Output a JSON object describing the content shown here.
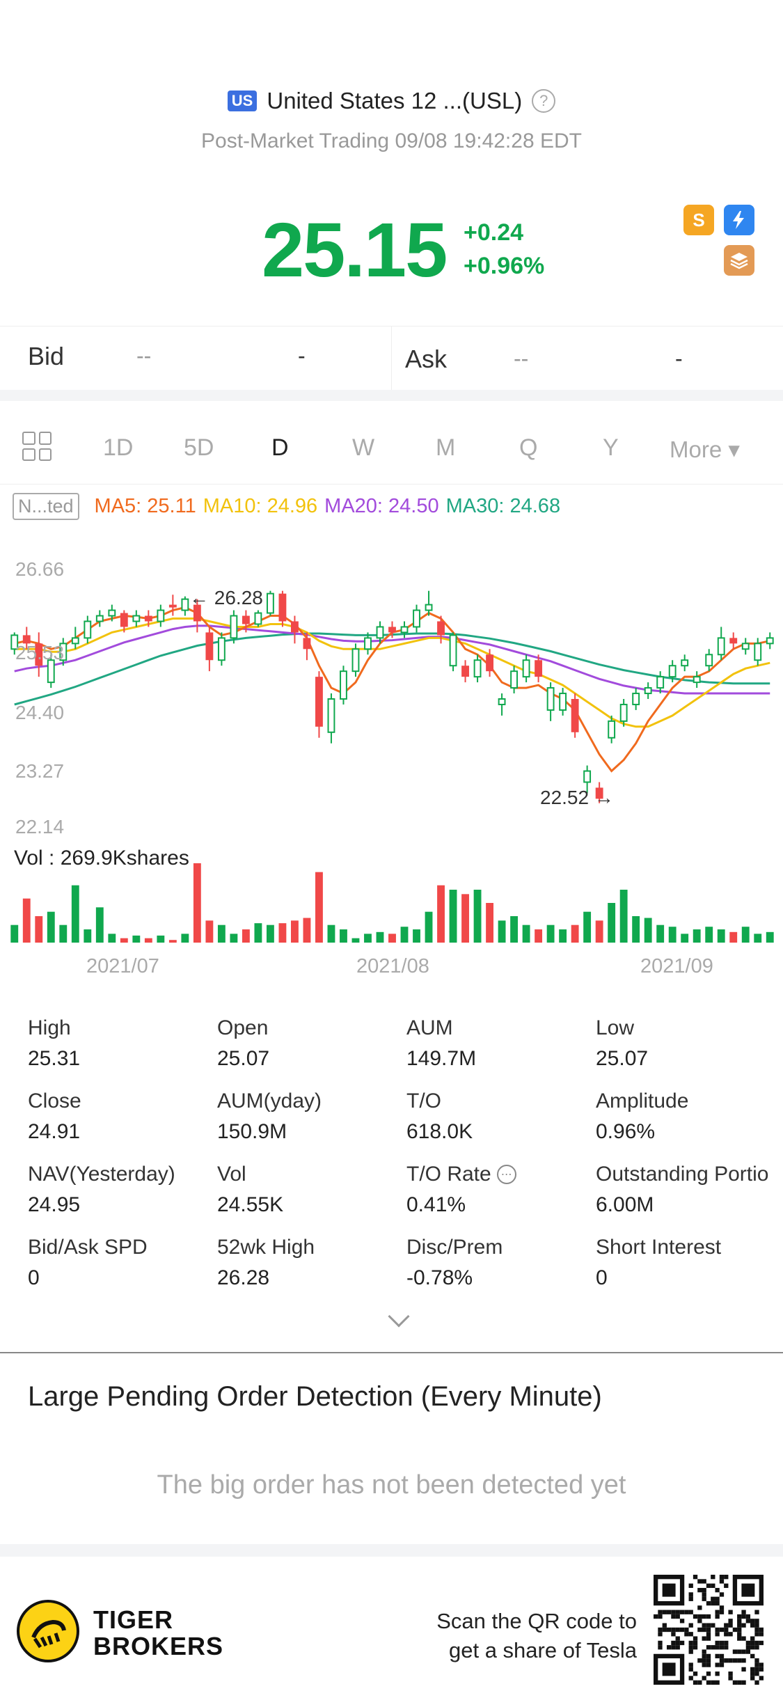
{
  "header": {
    "region_badge": "US",
    "title": "United States 12 ...(USL)",
    "help": "?",
    "subtitle": "Post-Market Trading 09/08 19:42:28 EDT",
    "price": "25.15",
    "change_abs": "+0.24",
    "change_pct": "+0.96%",
    "badge_dollar": "S",
    "badge_lightning": "1",
    "badge_layers": "A"
  },
  "bidask": {
    "bid_label": "Bid",
    "bid_price": "--",
    "bid_size": "-",
    "ask_label": "Ask",
    "ask_price": "--",
    "ask_size": "-"
  },
  "tabs": {
    "items": [
      "1D",
      "5D",
      "D",
      "W",
      "M",
      "Q",
      "Y"
    ],
    "more": "More ▾",
    "active": "D"
  },
  "indicators": {
    "adjust": "N...ted",
    "ma5": "MA5: 25.11",
    "ma10": "MA10: 24.96",
    "ma20": "MA20: 24.50",
    "ma30": "MA30: 24.68",
    "colors": {
      "ma5": "#f06a1e",
      "ma10": "#f2c20d",
      "ma20": "#a24bdc",
      "ma30": "#21a783",
      "up": "#f04848",
      "down": "#10a84e"
    }
  },
  "chart": {
    "y_labels": [
      "26.66",
      "25.53",
      "24.40",
      "23.27",
      "22.14"
    ],
    "high_marker": "26.28",
    "low_marker": "22.52",
    "vol_label": "Vol  : 269.9Kshares",
    "x_labels": [
      "2021/07",
      "2021/08",
      "2021/09"
    ]
  },
  "chart_data": {
    "type": "candlestick",
    "ylim": [
      22.14,
      26.66
    ],
    "candles": [
      {
        "o": 25.3,
        "c": 25.55,
        "h": 25.6,
        "l": 25.2,
        "v": 20,
        "up": false
      },
      {
        "o": 25.55,
        "c": 25.4,
        "h": 25.7,
        "l": 25.3,
        "v": 50,
        "up": true
      },
      {
        "o": 25.4,
        "c": 25.0,
        "h": 25.6,
        "l": 24.8,
        "v": 30,
        "up": true
      },
      {
        "o": 24.7,
        "c": 25.1,
        "h": 25.2,
        "l": 24.6,
        "v": 35,
        "up": false
      },
      {
        "o": 25.1,
        "c": 25.4,
        "h": 25.5,
        "l": 25.0,
        "v": 20,
        "up": false
      },
      {
        "o": 25.4,
        "c": 25.5,
        "h": 25.7,
        "l": 25.3,
        "v": 65,
        "up": false
      },
      {
        "o": 25.5,
        "c": 25.8,
        "h": 25.9,
        "l": 25.4,
        "v": 15,
        "up": false
      },
      {
        "o": 25.8,
        "c": 25.9,
        "h": 26.0,
        "l": 25.7,
        "v": 40,
        "up": false
      },
      {
        "o": 25.9,
        "c": 26.0,
        "h": 26.1,
        "l": 25.8,
        "v": 10,
        "up": false
      },
      {
        "o": 25.95,
        "c": 25.7,
        "h": 26.0,
        "l": 25.6,
        "v": 5,
        "up": true
      },
      {
        "o": 25.8,
        "c": 25.9,
        "h": 26.0,
        "l": 25.7,
        "v": 8,
        "up": false
      },
      {
        "o": 25.9,
        "c": 25.8,
        "h": 26.0,
        "l": 25.7,
        "v": 5,
        "up": true
      },
      {
        "o": 25.8,
        "c": 26.0,
        "h": 26.1,
        "l": 25.7,
        "v": 8,
        "up": false
      },
      {
        "o": 26.1,
        "c": 26.05,
        "h": 26.28,
        "l": 25.9,
        "v": 3,
        "up": true
      },
      {
        "o": 26.0,
        "c": 26.2,
        "h": 26.25,
        "l": 25.9,
        "v": 10,
        "up": false
      },
      {
        "o": 26.1,
        "c": 25.8,
        "h": 26.2,
        "l": 25.6,
        "v": 90,
        "up": true
      },
      {
        "o": 25.6,
        "c": 25.1,
        "h": 25.7,
        "l": 24.9,
        "v": 25,
        "up": true
      },
      {
        "o": 25.1,
        "c": 25.5,
        "h": 25.6,
        "l": 25.0,
        "v": 20,
        "up": false
      },
      {
        "o": 25.5,
        "c": 25.9,
        "h": 26.0,
        "l": 25.4,
        "v": 10,
        "up": false
      },
      {
        "o": 25.9,
        "c": 25.75,
        "h": 26.0,
        "l": 25.6,
        "v": 15,
        "up": true
      },
      {
        "o": 25.75,
        "c": 25.95,
        "h": 26.0,
        "l": 25.7,
        "v": 22,
        "up": false
      },
      {
        "o": 25.95,
        "c": 26.3,
        "h": 26.35,
        "l": 25.9,
        "v": 20,
        "up": false
      },
      {
        "o": 26.3,
        "c": 25.8,
        "h": 26.35,
        "l": 25.7,
        "v": 22,
        "up": true
      },
      {
        "o": 25.8,
        "c": 25.6,
        "h": 25.9,
        "l": 25.4,
        "v": 25,
        "up": true
      },
      {
        "o": 25.5,
        "c": 25.3,
        "h": 25.6,
        "l": 25.1,
        "v": 28,
        "up": true
      },
      {
        "o": 24.8,
        "c": 23.9,
        "h": 24.9,
        "l": 23.7,
        "v": 80,
        "up": true
      },
      {
        "o": 23.8,
        "c": 24.4,
        "h": 24.5,
        "l": 23.6,
        "v": 20,
        "up": false
      },
      {
        "o": 24.4,
        "c": 24.9,
        "h": 25.0,
        "l": 24.3,
        "v": 15,
        "up": false
      },
      {
        "o": 24.9,
        "c": 25.3,
        "h": 25.4,
        "l": 24.8,
        "v": 5,
        "up": false
      },
      {
        "o": 25.3,
        "c": 25.5,
        "h": 25.6,
        "l": 25.2,
        "v": 10,
        "up": false
      },
      {
        "o": 25.5,
        "c": 25.7,
        "h": 25.8,
        "l": 25.4,
        "v": 12,
        "up": false
      },
      {
        "o": 25.7,
        "c": 25.6,
        "h": 25.8,
        "l": 25.5,
        "v": 10,
        "up": true
      },
      {
        "o": 25.6,
        "c": 25.7,
        "h": 25.8,
        "l": 25.5,
        "v": 18,
        "up": false
      },
      {
        "o": 25.7,
        "c": 26.0,
        "h": 26.1,
        "l": 25.6,
        "v": 15,
        "up": false
      },
      {
        "o": 26.0,
        "c": 26.1,
        "h": 26.35,
        "l": 25.9,
        "v": 35,
        "up": false
      },
      {
        "o": 25.8,
        "c": 25.55,
        "h": 25.9,
        "l": 25.4,
        "v": 65,
        "up": true
      },
      {
        "o": 25.55,
        "c": 25.0,
        "h": 25.6,
        "l": 24.9,
        "v": 60,
        "up": false
      },
      {
        "o": 25.0,
        "c": 24.8,
        "h": 25.1,
        "l": 24.7,
        "v": 55,
        "up": true
      },
      {
        "o": 24.8,
        "c": 25.1,
        "h": 25.2,
        "l": 24.7,
        "v": 60,
        "up": false
      },
      {
        "o": 25.2,
        "c": 24.9,
        "h": 25.3,
        "l": 24.8,
        "v": 45,
        "up": true
      },
      {
        "o": 24.4,
        "c": 24.3,
        "h": 24.5,
        "l": 24.1,
        "v": 25,
        "up": false
      },
      {
        "o": 24.6,
        "c": 24.9,
        "h": 25.0,
        "l": 24.5,
        "v": 30,
        "up": false
      },
      {
        "o": 24.8,
        "c": 25.1,
        "h": 25.2,
        "l": 24.7,
        "v": 20,
        "up": false
      },
      {
        "o": 25.1,
        "c": 24.8,
        "h": 25.2,
        "l": 24.7,
        "v": 15,
        "up": true
      },
      {
        "o": 24.6,
        "c": 24.2,
        "h": 24.7,
        "l": 24.0,
        "v": 20,
        "up": false
      },
      {
        "o": 24.2,
        "c": 24.5,
        "h": 24.6,
        "l": 24.1,
        "v": 15,
        "up": false
      },
      {
        "o": 24.4,
        "c": 23.8,
        "h": 24.5,
        "l": 23.7,
        "v": 20,
        "up": true
      },
      {
        "o": 23.1,
        "c": 22.9,
        "h": 23.2,
        "l": 22.7,
        "v": 35,
        "up": false
      },
      {
        "o": 22.8,
        "c": 22.6,
        "h": 22.9,
        "l": 22.52,
        "v": 25,
        "up": true
      },
      {
        "o": 23.7,
        "c": 24.0,
        "h": 24.1,
        "l": 23.6,
        "v": 45,
        "up": false
      },
      {
        "o": 24.0,
        "c": 24.3,
        "h": 24.4,
        "l": 23.9,
        "v": 60,
        "up": false
      },
      {
        "o": 24.3,
        "c": 24.5,
        "h": 24.6,
        "l": 24.2,
        "v": 30,
        "up": false
      },
      {
        "o": 24.5,
        "c": 24.6,
        "h": 24.7,
        "l": 24.4,
        "v": 28,
        "up": false
      },
      {
        "o": 24.6,
        "c": 24.8,
        "h": 24.9,
        "l": 24.5,
        "v": 20,
        "up": false
      },
      {
        "o": 24.8,
        "c": 25.0,
        "h": 25.1,
        "l": 24.7,
        "v": 18,
        "up": false
      },
      {
        "o": 25.0,
        "c": 25.1,
        "h": 25.2,
        "l": 24.9,
        "v": 10,
        "up": false
      },
      {
        "o": 24.8,
        "c": 24.7,
        "h": 24.9,
        "l": 24.6,
        "v": 15,
        "up": false
      },
      {
        "o": 25.0,
        "c": 25.2,
        "h": 25.3,
        "l": 24.9,
        "v": 18,
        "up": false
      },
      {
        "o": 25.2,
        "c": 25.5,
        "h": 25.7,
        "l": 25.1,
        "v": 15,
        "up": false
      },
      {
        "o": 25.5,
        "c": 25.4,
        "h": 25.6,
        "l": 25.3,
        "v": 12,
        "up": true
      },
      {
        "o": 25.4,
        "c": 25.3,
        "h": 25.5,
        "l": 25.2,
        "v": 18,
        "up": false
      },
      {
        "o": 25.1,
        "c": 25.4,
        "h": 25.5,
        "l": 25.0,
        "v": 10,
        "up": false
      },
      {
        "o": 25.4,
        "c": 25.5,
        "h": 25.6,
        "l": 25.3,
        "v": 12,
        "up": false
      }
    ],
    "ma5": [
      25.4,
      25.45,
      25.4,
      25.3,
      25.35,
      25.5,
      25.65,
      25.8,
      25.85,
      25.9,
      25.88,
      25.85,
      25.9,
      26.0,
      26.05,
      25.95,
      25.7,
      25.55,
      25.6,
      25.7,
      25.8,
      25.9,
      25.9,
      25.75,
      25.5,
      25.0,
      24.6,
      24.5,
      24.7,
      25.1,
      25.4,
      25.6,
      25.65,
      25.8,
      25.95,
      25.85,
      25.6,
      25.3,
      25.2,
      25.0,
      24.7,
      24.6,
      24.6,
      24.65,
      24.5,
      24.4,
      24.2,
      23.8,
      23.4,
      23.1,
      23.3,
      23.6,
      24.0,
      24.3,
      24.6,
      24.8,
      24.8,
      24.9,
      25.1,
      25.3,
      25.4,
      25.4,
      25.45
    ],
    "ma10": [
      25.3,
      25.3,
      25.3,
      25.25,
      25.25,
      25.3,
      25.4,
      25.5,
      25.6,
      25.65,
      25.7,
      25.75,
      25.8,
      25.85,
      25.85,
      25.85,
      25.8,
      25.75,
      25.7,
      25.7,
      25.7,
      25.75,
      25.75,
      25.7,
      25.6,
      25.45,
      25.35,
      25.3,
      25.3,
      25.3,
      25.3,
      25.35,
      25.4,
      25.45,
      25.5,
      25.5,
      25.45,
      25.4,
      25.3,
      25.2,
      25.1,
      25.0,
      24.9,
      24.85,
      24.75,
      24.65,
      24.5,
      24.35,
      24.2,
      24.05,
      23.95,
      23.9,
      23.9,
      24.0,
      24.1,
      24.25,
      24.4,
      24.55,
      24.7,
      24.85,
      24.95,
      25.0,
      25.05
    ],
    "ma20": [
      24.9,
      24.95,
      24.98,
      25.0,
      25.05,
      25.1,
      25.18,
      25.26,
      25.34,
      25.42,
      25.48,
      25.54,
      25.6,
      25.66,
      25.7,
      25.72,
      25.72,
      25.7,
      25.68,
      25.66,
      25.64,
      25.62,
      25.6,
      25.58,
      25.56,
      25.52,
      25.48,
      25.45,
      25.44,
      25.44,
      25.45,
      25.46,
      25.48,
      25.5,
      25.52,
      25.52,
      25.5,
      25.46,
      25.42,
      25.38,
      25.32,
      25.26,
      25.2,
      25.14,
      25.08,
      25.0,
      24.92,
      24.84,
      24.76,
      24.7,
      24.64,
      24.6,
      24.56,
      24.54,
      24.52,
      24.5,
      24.5,
      24.5,
      24.5,
      24.5,
      24.5,
      24.5,
      24.5
    ],
    "ma30": [
      24.3,
      24.36,
      24.42,
      24.48,
      24.55,
      24.62,
      24.7,
      24.78,
      24.86,
      24.94,
      25.02,
      25.1,
      25.18,
      25.24,
      25.3,
      25.36,
      25.4,
      25.44,
      25.47,
      25.5,
      25.52,
      25.54,
      25.56,
      25.57,
      25.58,
      25.58,
      25.57,
      25.56,
      25.55,
      25.55,
      25.55,
      25.56,
      25.57,
      25.58,
      25.58,
      25.58,
      25.57,
      25.55,
      25.52,
      25.49,
      25.45,
      25.41,
      25.36,
      25.31,
      25.26,
      25.2,
      25.14,
      25.08,
      25.02,
      24.97,
      24.92,
      24.88,
      24.84,
      24.8,
      24.77,
      24.74,
      24.72,
      24.7,
      24.69,
      24.68,
      24.68,
      24.68,
      24.68
    ]
  },
  "stats": [
    {
      "k": "High",
      "v": "25.31"
    },
    {
      "k": "Open",
      "v": "25.07"
    },
    {
      "k": "AUM",
      "v": "149.7M"
    },
    {
      "k": "Low",
      "v": "25.07"
    },
    {
      "k": "Close",
      "v": "24.91"
    },
    {
      "k": "AUM(yday)",
      "v": "150.9M"
    },
    {
      "k": "T/O",
      "v": "618.0K"
    },
    {
      "k": "Amplitude",
      "v": "0.96%"
    },
    {
      "k": "NAV(Yesterday)",
      "v": "24.95"
    },
    {
      "k": "Vol",
      "v": "24.55K"
    },
    {
      "k": "T/O Rate",
      "v": "0.41%"
    },
    {
      "k": "Outstanding Portio",
      "v": "6.00M"
    },
    {
      "k": "Bid/Ask SPD",
      "v": "0"
    },
    {
      "k": "52wk High",
      "v": "26.28"
    },
    {
      "k": "Disc/Prem",
      "v": "-0.78%"
    },
    {
      "k": "Short Interest",
      "v": "0"
    }
  ],
  "lpod": {
    "title": "Large Pending Order Detection (Every Minute)",
    "empty": "The big order has not been detected yet"
  },
  "footer": {
    "brand_line1": "TIGER",
    "brand_line2": "BROKERS",
    "scan_line1": "Scan the QR code to",
    "scan_line2": "get a share of Tesla"
  }
}
